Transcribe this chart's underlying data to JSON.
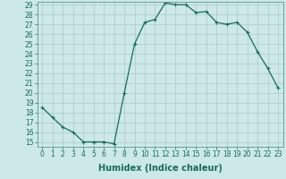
{
  "x": [
    0,
    1,
    2,
    3,
    4,
    5,
    6,
    7,
    8,
    9,
    10,
    11,
    12,
    13,
    14,
    15,
    16,
    17,
    18,
    19,
    20,
    21,
    22,
    23
  ],
  "y": [
    18.5,
    17.5,
    16.5,
    16.0,
    15.0,
    15.0,
    15.0,
    14.8,
    20.0,
    25.0,
    27.2,
    27.5,
    29.2,
    29.0,
    29.0,
    28.2,
    28.3,
    27.2,
    27.0,
    27.2,
    26.2,
    24.2,
    22.5,
    20.5
  ],
  "line_color": "#1a6b5a",
  "marker": "+",
  "bg_color": "#cce8e8",
  "grid_color": "#b0c8c8",
  "xlabel": "Humidex (Indice chaleur)",
  "ylabel": "",
  "ylim": [
    15,
    29
  ],
  "xlim": [
    -0.5,
    23.5
  ],
  "yticks": [
    15,
    16,
    17,
    18,
    19,
    20,
    21,
    22,
    23,
    24,
    25,
    26,
    27,
    28,
    29
  ],
  "xticks": [
    0,
    1,
    2,
    3,
    4,
    5,
    6,
    7,
    8,
    9,
    10,
    11,
    12,
    13,
    14,
    15,
    16,
    17,
    18,
    19,
    20,
    21,
    22,
    23
  ],
  "tick_color": "#1a6b5a",
  "axis_color": "#5a9a8a",
  "label_fontsize": 7,
  "tick_fontsize": 5.5,
  "linewidth": 0.9,
  "markersize": 3.5,
  "markeredgewidth": 0.8
}
